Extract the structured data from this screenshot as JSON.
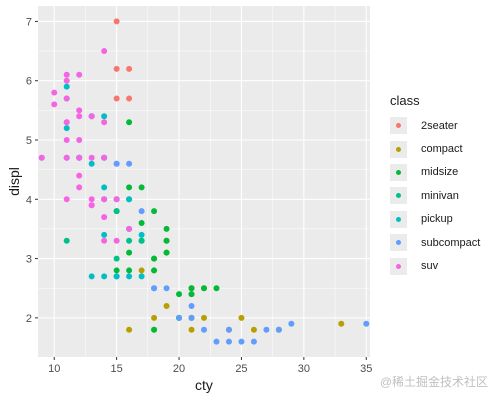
{
  "chart_data": {
    "type": "scatter",
    "title": "",
    "xlabel": "cty",
    "ylabel": "displ",
    "xlim": [
      8.7,
      35.3
    ],
    "ylim": [
      1.34,
      7.26
    ],
    "xticks": [
      10,
      15,
      20,
      25,
      30,
      35
    ],
    "yticks": [
      2,
      3,
      4,
      5,
      6,
      7
    ],
    "grid": true,
    "legend_title": "class",
    "legend_position": "right",
    "series": [
      {
        "name": "2seater",
        "color": "#F8766D",
        "points": [
          [
            15,
            5.7
          ],
          [
            16,
            5.7
          ],
          [
            15,
            6.2
          ],
          [
            16,
            6.2
          ],
          [
            15,
            7.0
          ]
        ]
      },
      {
        "name": "compact",
        "color": "#B79F00",
        "points": [
          [
            18,
            1.8
          ],
          [
            21,
            1.8
          ],
          [
            20,
            2.0
          ],
          [
            21,
            2.0
          ],
          [
            18,
            2.8
          ],
          [
            16,
            1.8
          ],
          [
            18,
            2.0
          ],
          [
            17,
            2.8
          ],
          [
            19,
            3.1
          ],
          [
            21,
            2.0
          ],
          [
            22,
            2.0
          ],
          [
            24,
            1.8
          ],
          [
            26,
            1.8
          ],
          [
            28,
            1.8
          ],
          [
            33,
            1.9
          ],
          [
            25,
            2.0
          ],
          [
            21,
            2.5
          ],
          [
            21,
            2.5
          ],
          [
            19,
            2.2
          ],
          [
            21,
            2.4
          ],
          [
            18,
            3.0
          ],
          [
            19,
            3.3
          ],
          [
            22,
            2.5
          ]
        ]
      },
      {
        "name": "midsize",
        "color": "#00BA38",
        "points": [
          [
            18,
            2.8
          ],
          [
            16,
            3.1
          ],
          [
            17,
            4.2
          ],
          [
            16,
            4.2
          ],
          [
            20,
            2.4
          ],
          [
            19,
            3.1
          ],
          [
            15,
            3.8
          ],
          [
            16,
            2.8
          ],
          [
            17,
            3.6
          ],
          [
            18,
            3.8
          ],
          [
            21,
            2.4
          ],
          [
            19,
            3.3
          ],
          [
            17,
            3.3
          ],
          [
            16,
            3.5
          ],
          [
            15,
            2.8
          ],
          [
            18,
            1.8
          ],
          [
            20,
            2.0
          ],
          [
            22,
            2.5
          ],
          [
            18,
            3.0
          ],
          [
            16,
            5.3
          ],
          [
            23,
            2.5
          ],
          [
            19,
            3.5
          ],
          [
            21,
            2.5
          ]
        ]
      },
      {
        "name": "minivan",
        "color": "#00C08B",
        "points": [
          [
            11,
            3.3
          ],
          [
            15,
            3.0
          ],
          [
            17,
            3.3
          ],
          [
            16,
            3.3
          ],
          [
            15,
            3.8
          ],
          [
            16,
            4.0
          ]
        ]
      },
      {
        "name": "pickup",
        "color": "#00BFC4",
        "points": [
          [
            15,
            2.7
          ],
          [
            14,
            2.7
          ],
          [
            13,
            2.7
          ],
          [
            14,
            4.7
          ],
          [
            11,
            4.7
          ],
          [
            11,
            5.2
          ],
          [
            12,
            4.7
          ],
          [
            11,
            5.7
          ],
          [
            11,
            5.9
          ],
          [
            13,
            5.4
          ],
          [
            16,
            2.7
          ],
          [
            15,
            2.7
          ],
          [
            17,
            3.4
          ],
          [
            15,
            4.0
          ],
          [
            14,
            4.0
          ],
          [
            16,
            4.0
          ],
          [
            14,
            4.2
          ],
          [
            13,
            4.6
          ],
          [
            17,
            2.7
          ],
          [
            14,
            3.4
          ],
          [
            12,
            4.7
          ],
          [
            14,
            5.4
          ]
        ]
      },
      {
        "name": "subcompact",
        "color": "#619CFF",
        "points": [
          [
            9,
            4.7
          ],
          [
            14,
            4.7
          ],
          [
            15,
            4.6
          ],
          [
            16,
            4.6
          ],
          [
            18,
            2.5
          ],
          [
            20,
            2.0
          ],
          [
            21,
            2.0
          ],
          [
            22,
            1.8
          ],
          [
            23,
            1.6
          ],
          [
            24,
            1.6
          ],
          [
            25,
            1.6
          ],
          [
            26,
            1.6
          ],
          [
            29,
            1.9
          ],
          [
            35,
            1.9
          ],
          [
            28,
            1.8
          ],
          [
            27,
            1.8
          ],
          [
            24,
            1.8
          ],
          [
            21,
            2.2
          ],
          [
            19,
            2.5
          ],
          [
            18,
            2.5
          ],
          [
            17,
            3.8
          ],
          [
            15,
            4.6
          ],
          [
            13,
            5.4
          ]
        ]
      },
      {
        "name": "suv",
        "color": "#F564E3",
        "points": [
          [
            14,
            5.3
          ],
          [
            11,
            5.3
          ],
          [
            11,
            5.7
          ],
          [
            12,
            6.1
          ],
          [
            11,
            6.1
          ],
          [
            11,
            5.3
          ],
          [
            12,
            5.0
          ],
          [
            11,
            5.0
          ],
          [
            9,
            4.7
          ],
          [
            11,
            4.7
          ],
          [
            12,
            4.7
          ],
          [
            14,
            4.7
          ],
          [
            13,
            4.7
          ],
          [
            13,
            5.4
          ],
          [
            14,
            6.5
          ],
          [
            11,
            6.0
          ],
          [
            12,
            5.4
          ],
          [
            13,
            3.9
          ],
          [
            14,
            3.7
          ],
          [
            14,
            3.3
          ],
          [
            15,
            3.3
          ],
          [
            16,
            3.5
          ],
          [
            12,
            4.2
          ],
          [
            13,
            4.0
          ],
          [
            12,
            4.4
          ],
          [
            11,
            4.0
          ],
          [
            15,
            4.0
          ],
          [
            13,
            3.9
          ],
          [
            14,
            4.0
          ],
          [
            12,
            5.5
          ],
          [
            10,
            5.8
          ],
          [
            10,
            5.6
          ]
        ]
      }
    ]
  },
  "watermark": "@稀土掘金技术社区"
}
